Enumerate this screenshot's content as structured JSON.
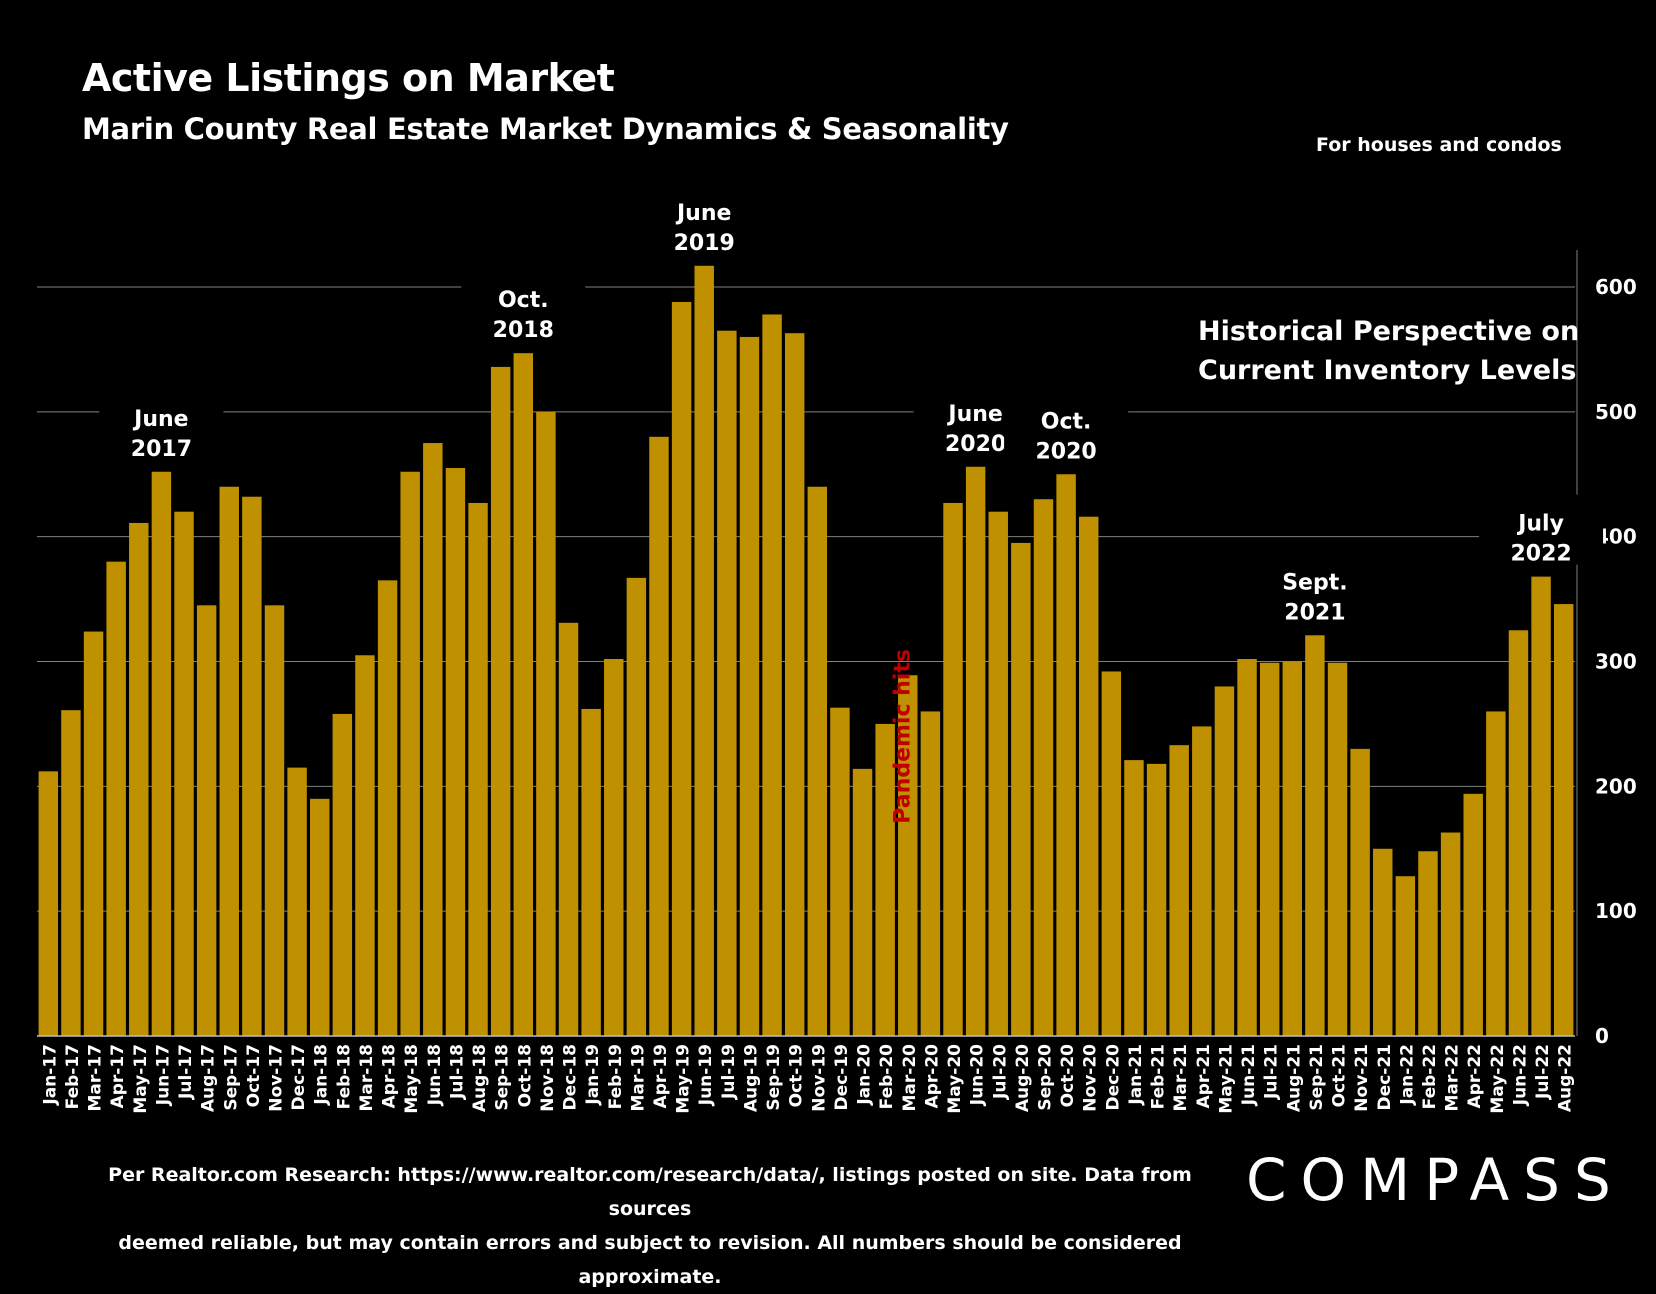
{
  "header": {
    "title": "Active Listings on Market",
    "subtitle": "Marin County Real Estate Market Dynamics & Seasonality",
    "note": "For houses and condos",
    "perspective": "Historical Perspective on\nCurrent Inventory Levels"
  },
  "footer": {
    "source": "Per Realtor.com Research:  https://www.realtor.com/research/data/, listings posted on site. Data from sources\ndeemed reliable, but may contain errors and subject to revision. All numbers should be considered approximate.",
    "logo": "COMPASS"
  },
  "colors": {
    "bar": "#BF9000",
    "background": "#000000",
    "annotation_red": "#C00000",
    "grid": "#7F7F7F"
  },
  "chart_data": {
    "type": "bar",
    "title": "Active Listings on Market",
    "subtitle": "Marin County Real Estate Market Dynamics & Seasonality",
    "xlabel": "",
    "ylabel": "",
    "ylim": [
      0,
      630
    ],
    "yticks": [
      0,
      100,
      200,
      300,
      400,
      500,
      600
    ],
    "grid": true,
    "categories": [
      "Jan-17",
      "Feb-17",
      "Mar-17",
      "Apr-17",
      "May-17",
      "Jun-17",
      "Jul-17",
      "Aug-17",
      "Sep-17",
      "Oct-17",
      "Nov-17",
      "Dec-17",
      "Jan-18",
      "Feb-18",
      "Mar-18",
      "Apr-18",
      "May-18",
      "Jun-18",
      "Jul-18",
      "Aug-18",
      "Sep-18",
      "Oct-18",
      "Nov-18",
      "Dec-18",
      "Jan-19",
      "Feb-19",
      "Mar-19",
      "Apr-19",
      "May-19",
      "Jun-19",
      "Jul-19",
      "Aug-19",
      "Sep-19",
      "Oct-19",
      "Nov-19",
      "Dec-19",
      "Jan-20",
      "Feb-20",
      "Mar-20",
      "Apr-20",
      "May-20",
      "Jun-20",
      "Jul-20",
      "Aug-20",
      "Sep-20",
      "Oct-20",
      "Nov-20",
      "Dec-20",
      "Jan-21",
      "Feb-21",
      "Mar-21",
      "Apr-21",
      "May-21",
      "Jun-21",
      "Jul-21",
      "Aug-21",
      "Sep-21",
      "Oct-21",
      "Nov-21",
      "Dec-21",
      "Jan-22",
      "Feb-22",
      "Mar-22",
      "Apr-22",
      "May-22",
      "Jun-22",
      "Jul-22",
      "Aug-22"
    ],
    "values": [
      212,
      261,
      324,
      380,
      411,
      452,
      420,
      345,
      440,
      432,
      345,
      215,
      190,
      258,
      305,
      365,
      452,
      475,
      455,
      427,
      536,
      547,
      500,
      331,
      262,
      302,
      367,
      480,
      588,
      617,
      565,
      560,
      578,
      563,
      440,
      263,
      214,
      250,
      289,
      260,
      427,
      456,
      420,
      395,
      430,
      450,
      416,
      292,
      221,
      218,
      233,
      248,
      280,
      302,
      299,
      300,
      321,
      299,
      230,
      150,
      128,
      148,
      163,
      194,
      260,
      325,
      368,
      346
    ],
    "annotations": [
      {
        "category": "Jun-17",
        "text": [
          "June",
          "2017"
        ]
      },
      {
        "category": "Oct-18",
        "text": [
          "Oct.",
          "2018"
        ]
      },
      {
        "category": "Jun-19",
        "text": [
          "June",
          "2019"
        ]
      },
      {
        "category": "Jun-20",
        "text": [
          "June",
          "2020"
        ]
      },
      {
        "category": "Oct-20",
        "text": [
          "Oct.",
          "2020"
        ]
      },
      {
        "category": "Sep-21",
        "text": [
          "Sept.",
          "2021"
        ]
      },
      {
        "category": "Jul-22",
        "text": [
          "July",
          "2022"
        ]
      }
    ],
    "event_label": {
      "category": "Apr-20",
      "text": "Pandemic hits"
    }
  }
}
